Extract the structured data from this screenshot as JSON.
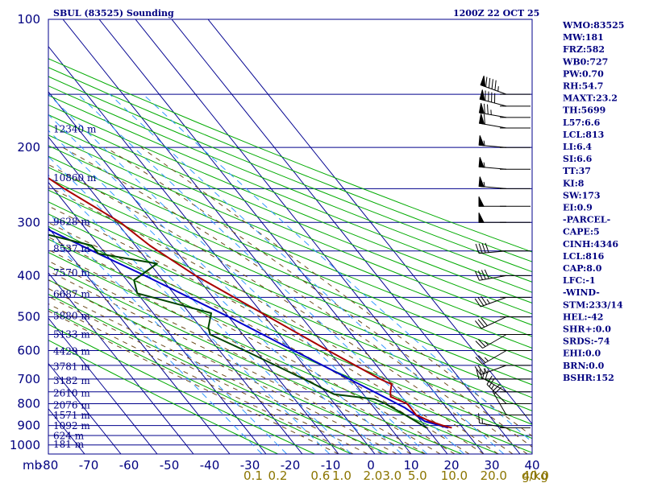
{
  "header": {
    "station_title": "SBUL (83525) Sounding",
    "valid_time": "1200Z 22 OCT 25"
  },
  "axis": {
    "pressure_unit_label": "mb",
    "mixing_ratio_unit_label": "g/kg"
  },
  "colors": {
    "grid": "#00008b",
    "isotherm": "#000090",
    "dry_adiabat": "#00aa00",
    "moist_adiabat": "#6b4a1a",
    "mixing_ratio": "#3399ff",
    "temperature": "#aa0000",
    "dewpoint": "#004400",
    "parcel": "#0000cc",
    "wind": "#000000"
  },
  "chart_data": {
    "type": "skew-t",
    "title": "SBUL (83525) Sounding",
    "time": "1200Z 22 OCT 25",
    "pressure_levels_mb": [
      100,
      200,
      300,
      400,
      500,
      600,
      700,
      800,
      900,
      1000
    ],
    "pressure_labels": [
      "100",
      "200",
      "300",
      "400",
      "500",
      "600",
      "700",
      "800",
      "900",
      "1000"
    ],
    "temperature_ticks_c": [
      -80,
      -70,
      -60,
      -50,
      -40,
      -30,
      -20,
      -10,
      0,
      10,
      20,
      30,
      40
    ],
    "temperature_tick_labels": [
      "-80",
      "-70",
      "-60",
      "-50",
      "-40",
      "-30",
      "-20",
      "-10",
      "0",
      "10",
      "20",
      "30",
      "40"
    ],
    "mixing_ratio_labels": [
      "0.1",
      "0.2",
      "0.6",
      "1.0",
      "2.0",
      "3.0",
      "5.0",
      "10.0",
      "20.0",
      "40.0"
    ],
    "mixing_ratio_values": [
      0.1,
      0.2,
      0.6,
      1.0,
      2.0,
      3.0,
      5.0,
      10.0,
      20.0,
      40.0
    ],
    "height_labels": [
      {
        "p": 181,
        "text": "12340 m"
      },
      {
        "p": 236,
        "text": "10860 m"
      },
      {
        "p": 299,
        "text": "9628 m"
      },
      {
        "p": 346,
        "text": "8537 m"
      },
      {
        "p": 394,
        "text": "7570 m"
      },
      {
        "p": 442,
        "text": "6687 m"
      },
      {
        "p": 498,
        "text": "5880 m"
      },
      {
        "p": 550,
        "text": "5133 m"
      },
      {
        "p": 603,
        "text": "4429 m"
      },
      {
        "p": 655,
        "text": "3781 m"
      },
      {
        "p": 706,
        "text": "3182 m"
      },
      {
        "p": 756,
        "text": "2610 m"
      },
      {
        "p": 807,
        "text": "2076 m"
      },
      {
        "p": 852,
        "text": "1571 m"
      },
      {
        "p": 902,
        "text": "1092 m"
      },
      {
        "p": 952,
        "text": "624 m"
      },
      {
        "p": 996,
        "text": "181 m"
      }
    ],
    "temperature_profile": [
      {
        "p": 911,
        "t": 17
      },
      {
        "p": 900,
        "t": 15
      },
      {
        "p": 880,
        "t": 12.5
      },
      {
        "p": 850,
        "t": 10
      },
      {
        "p": 800,
        "t": 10
      },
      {
        "p": 770,
        "t": 7
      },
      {
        "p": 750,
        "t": 8
      },
      {
        "p": 720,
        "t": 10
      },
      {
        "p": 700,
        "t": 8
      },
      {
        "p": 600,
        "t": 0
      },
      {
        "p": 500,
        "t": -9
      },
      {
        "p": 400,
        "t": -20
      },
      {
        "p": 340,
        "t": -26
      },
      {
        "p": 300,
        "t": -29
      },
      {
        "p": 250,
        "t": -37
      },
      {
        "p": 200,
        "t": -45
      },
      {
        "p": 170,
        "t": -53
      },
      {
        "p": 155,
        "t": -56
      }
    ],
    "dewpoint_profile": [
      {
        "p": 911,
        "t": 10
      },
      {
        "p": 850,
        "t": 7
      },
      {
        "p": 800,
        "t": 4
      },
      {
        "p": 780,
        "t": 2
      },
      {
        "p": 760,
        "t": -8
      },
      {
        "p": 700,
        "t": -13
      },
      {
        "p": 600,
        "t": -23
      },
      {
        "p": 550,
        "t": -29
      },
      {
        "p": 530,
        "t": -28
      },
      {
        "p": 490,
        "t": -24
      },
      {
        "p": 440,
        "t": -40
      },
      {
        "p": 410,
        "t": -38
      },
      {
        "p": 375,
        "t": -28
      },
      {
        "p": 355,
        "t": -42
      },
      {
        "p": 340,
        "t": -42
      },
      {
        "p": 320,
        "t": -52
      },
      {
        "p": 300,
        "t": -56
      },
      {
        "p": 250,
        "t": -67
      },
      {
        "p": 200,
        "t": -74
      },
      {
        "p": 185,
        "t": -72
      },
      {
        "p": 170,
        "t": -79
      },
      {
        "p": 160,
        "t": -84
      }
    ],
    "parcel_profile": [
      {
        "p": 911,
        "t": 16
      },
      {
        "p": 880,
        "t": 11
      },
      {
        "p": 816,
        "t": 8.4
      },
      {
        "p": 700,
        "t": -0.5
      },
      {
        "p": 600,
        "t": -9.5
      },
      {
        "p": 500,
        "t": -20
      },
      {
        "p": 400,
        "t": -34
      },
      {
        "p": 350,
        "t": -43
      },
      {
        "p": 300,
        "t": -53
      },
      {
        "p": 250,
        "t": -65
      },
      {
        "p": 200,
        "t": -79
      },
      {
        "p": 170,
        "t": -88
      }
    ],
    "wind_barbs": [
      {
        "p": 150,
        "dir": 290,
        "spd": 95
      },
      {
        "p": 160,
        "dir": 285,
        "spd": 90
      },
      {
        "p": 170,
        "dir": 280,
        "spd": 75
      },
      {
        "p": 180,
        "dir": 280,
        "spd": 60
      },
      {
        "p": 200,
        "dir": 275,
        "spd": 55
      },
      {
        "p": 225,
        "dir": 275,
        "spd": 55
      },
      {
        "p": 250,
        "dir": 275,
        "spd": 55
      },
      {
        "p": 275,
        "dir": 270,
        "spd": 50
      },
      {
        "p": 300,
        "dir": 270,
        "spd": 50
      },
      {
        "p": 350,
        "dir": 265,
        "spd": 40
      },
      {
        "p": 400,
        "dir": 260,
        "spd": 40
      },
      {
        "p": 450,
        "dir": 250,
        "spd": 35
      },
      {
        "p": 500,
        "dir": 245,
        "spd": 30
      },
      {
        "p": 550,
        "dir": 240,
        "spd": 25
      },
      {
        "p": 600,
        "dir": 240,
        "spd": 25
      },
      {
        "p": 650,
        "dir": 250,
        "spd": 25
      },
      {
        "p": 700,
        "dir": 270,
        "spd": 20
      },
      {
        "p": 750,
        "dir": 300,
        "spd": 20
      },
      {
        "p": 800,
        "dir": 315,
        "spd": 25
      },
      {
        "p": 850,
        "dir": 330,
        "spd": 20
      },
      {
        "p": 911,
        "dir": 280,
        "spd": 15
      }
    ]
  },
  "indices": {
    "title_lines": [
      "WMO:83525",
      "MW:181",
      "FRZ:582",
      "WB0:727",
      "PW:0.70",
      "RH:54.7",
      "MAXT:23.2",
      "TH:5699",
      "L57:6.6",
      "LCL:813",
      "LI:6.4",
      "SI:6.6",
      "TT:37",
      "KI:8",
      "SW:173",
      "EI:0.9",
      "-PARCEL-",
      "CAPE:5",
      "CINH:4346",
      "LCL:816",
      "CAP:8.0",
      "LFC:-1",
      "-WIND-",
      "STM:233/14",
      "HEL:-42",
      "SHR+:0.0",
      "SRDS:-74",
      "EHI:0.0",
      "BRN:0.0",
      "BSHR:152"
    ]
  }
}
